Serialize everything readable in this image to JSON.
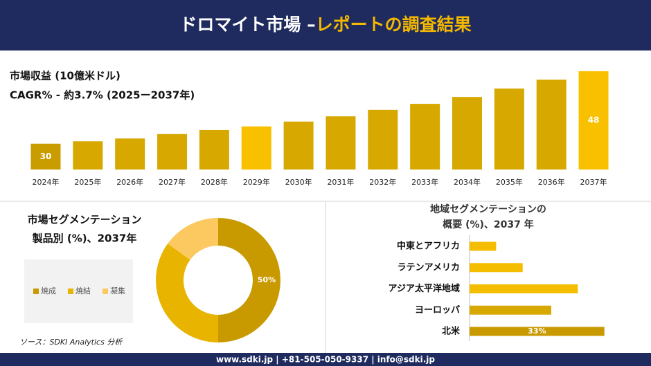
{
  "header": {
    "title_main": "ドロマイト市場 –",
    "title_accent": "レポートの調査結果"
  },
  "chart_data": [
    {
      "type": "bar",
      "subtitle_lines": [
        "市場収益 (10億米ドル)",
        "CAGR% - 約3.7% (2025ー2037年)"
      ],
      "categories": [
        "2024年",
        "2025年",
        "2026年",
        "2027年",
        "2028年",
        "2029年",
        "2030年",
        "2031年",
        "2032年",
        "2033年",
        "2034年",
        "2035年",
        "2036年",
        "2037年"
      ],
      "values": [
        30,
        30.6,
        31.3,
        32.4,
        33.4,
        34.3,
        35.5,
        36.8,
        38.4,
        39.9,
        41.6,
        43.7,
        45.9,
        48
      ],
      "value_labels": [
        "30",
        null,
        null,
        null,
        null,
        null,
        null,
        null,
        null,
        null,
        null,
        null,
        null,
        "48"
      ],
      "colors": [
        "#c99c00",
        "#d6a800",
        "#d6a800",
        "#d6a800",
        "#d6a800",
        "#f9c000",
        "#d6a800",
        "#d6a800",
        "#d6a800",
        "#d6a800",
        "#d6a800",
        "#d6a800",
        "#d6a800",
        "#f9c000"
      ],
      "ylim": [
        23.6,
        48.5
      ]
    },
    {
      "type": "pie",
      "title_lines": [
        "市場セグメンテーション",
        "製品別 (%)、2037年"
      ],
      "categories": [
        "焼成",
        "焼結",
        "凝集"
      ],
      "values": [
        50,
        35,
        15
      ],
      "value_labels": [
        "50%",
        null,
        null
      ],
      "colors": [
        "#c99a00",
        "#e8b400",
        "#fcc860"
      ],
      "legend": "left"
    },
    {
      "type": "barh",
      "title_lines": [
        "地域セグメンテーションの",
        "概要 (%)、2037 年"
      ],
      "categories": [
        "中東とアフリカ",
        "ラテンアメリカ",
        "アジア太平洋地域",
        "ヨーロッパ",
        "北米"
      ],
      "values": [
        6.5,
        13,
        26.5,
        20,
        33
      ],
      "value_labels": [
        null,
        null,
        null,
        null,
        "33%"
      ],
      "colors": [
        "#f5bd00",
        "#f5bd00",
        "#f5bd00",
        "#d6a800",
        "#c99a00"
      ],
      "xlim": [
        0,
        40
      ]
    }
  ],
  "source": "ソース：SDKI Analytics 分析",
  "footer": "www.sdki.jp | +81-505-050-9337 | info@sdki.jp"
}
